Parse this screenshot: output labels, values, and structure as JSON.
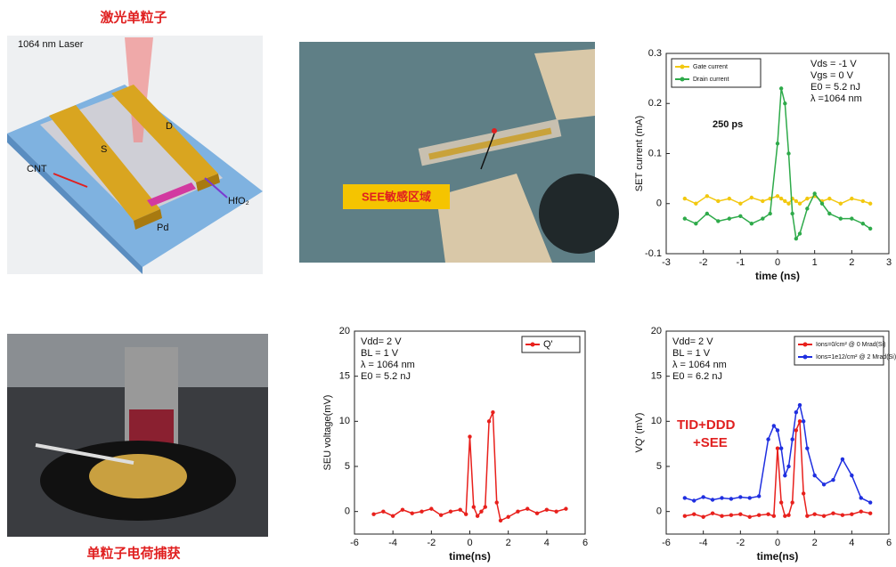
{
  "figure": {
    "top_caption": "激光单粒子",
    "bottom_caption": "单粒子电荷捕获",
    "device": {
      "laser": "1064 nm Laser",
      "source": "S",
      "drain": "D",
      "cnt": "CNT",
      "oxide": "HfO₂",
      "gate": "Pd"
    },
    "photo_label": "SEE敏感区域"
  },
  "chart_data": [
    {
      "type": "line",
      "xlabel": "time (ns)",
      "ylabel": "SET current (mA)",
      "xlim": [
        -3,
        3
      ],
      "xticks": [
        -3,
        -2,
        -1,
        0,
        1,
        2,
        3
      ],
      "ylim": [
        -0.1,
        0.3
      ],
      "yticks": [
        -0.1,
        0,
        0.1,
        0.2,
        0.3
      ],
      "legend": "upper left",
      "annotations": [
        "Vds = -1 V",
        "Vgs = 0 V",
        "E0 = 5.2 nJ",
        "λ =1064 nm"
      ],
      "callouts": [
        "250 ps"
      ],
      "x": [
        -2.5,
        -2.2,
        -1.9,
        -1.6,
        -1.3,
        -1.0,
        -0.7,
        -0.4,
        -0.2,
        0,
        0.1,
        0.2,
        0.3,
        0.4,
        0.5,
        0.6,
        0.8,
        1.0,
        1.2,
        1.4,
        1.7,
        2.0,
        2.3,
        2.5
      ],
      "series": [
        {
          "name": "Gate current",
          "color": "#f2c80f",
          "values": [
            0.01,
            0.0,
            0.015,
            0.005,
            0.01,
            0.0,
            0.012,
            0.005,
            0.01,
            0.015,
            0.01,
            0.005,
            0.0,
            0.01,
            0.005,
            0.0,
            0.01,
            0.015,
            0.005,
            0.01,
            0.0,
            0.01,
            0.005,
            0.0
          ]
        },
        {
          "name": "Drain current",
          "color": "#2eaa4a",
          "values": [
            -0.03,
            -0.04,
            -0.02,
            -0.035,
            -0.03,
            -0.025,
            -0.04,
            -0.03,
            -0.02,
            0.12,
            0.23,
            0.2,
            0.1,
            -0.02,
            -0.07,
            -0.06,
            -0.01,
            0.02,
            0.0,
            -0.02,
            -0.03,
            -0.03,
            -0.04,
            -0.05
          ]
        }
      ]
    },
    {
      "type": "line",
      "xlabel": "time(ns)",
      "ylabel": "SEU voltage(mV)",
      "xlim": [
        -6,
        6
      ],
      "xticks": [
        -6,
        -4,
        -2,
        0,
        2,
        4,
        6
      ],
      "ylim": [
        -2.5,
        20
      ],
      "yticks": [
        0,
        5,
        10,
        15,
        20
      ],
      "legend": "upper right",
      "annotations": [
        "Vdd= 2 V",
        "BL = 1 V",
        "λ = 1064 nm",
        "E0 = 5.2 nJ"
      ],
      "callouts": [],
      "x": [
        -5,
        -4.5,
        -4,
        -3.5,
        -3,
        -2.5,
        -2,
        -1.5,
        -1,
        -0.5,
        -0.2,
        0,
        0.2,
        0.4,
        0.6,
        0.8,
        1.0,
        1.2,
        1.4,
        1.6,
        2,
        2.5,
        3,
        3.5,
        4,
        4.5,
        5
      ],
      "series": [
        {
          "name": "Q'",
          "color": "#e8201c",
          "values": [
            -0.3,
            0,
            -0.5,
            0.2,
            -0.2,
            0,
            0.3,
            -0.4,
            0,
            0.2,
            -0.3,
            8.3,
            0.5,
            -0.5,
            0,
            0.5,
            10,
            11,
            1,
            -1,
            -0.6,
            0,
            0.3,
            -0.2,
            0.2,
            0,
            0.3
          ]
        }
      ]
    },
    {
      "type": "line",
      "xlabel": "time(ns)",
      "ylabel": "VQ' (mV)",
      "xlim": [
        -6,
        6
      ],
      "xticks": [
        -6,
        -4,
        -2,
        0,
        2,
        4,
        6
      ],
      "ylim": [
        -2.5,
        20
      ],
      "yticks": [
        0,
        5,
        10,
        15,
        20
      ],
      "legend": "upper right",
      "annotations": [
        "Vdd= 2 V",
        "BL = 1 V",
        "λ = 1064 nm",
        "E0 = 6.2 nJ"
      ],
      "callouts": [
        "TID+DDD",
        "+SEE"
      ],
      "x": [
        -5,
        -4.5,
        -4,
        -3.5,
        -3,
        -2.5,
        -2,
        -1.5,
        -1,
        -0.5,
        -0.2,
        0,
        0.2,
        0.4,
        0.6,
        0.8,
        1.0,
        1.2,
        1.4,
        1.6,
        2,
        2.5,
        3,
        3.5,
        4,
        4.5,
        5
      ],
      "series": [
        {
          "name": "Ions=0/cm² @ 0 Mrad(Si)",
          "color": "#e8201c",
          "values": [
            -0.5,
            -0.3,
            -0.6,
            -0.2,
            -0.5,
            -0.4,
            -0.3,
            -0.6,
            -0.4,
            -0.3,
            -0.5,
            7,
            1,
            -0.5,
            -0.4,
            1,
            9,
            10,
            2,
            -0.5,
            -0.3,
            -0.5,
            -0.2,
            -0.4,
            -0.3,
            0,
            -0.2
          ]
        },
        {
          "name": "Ions=1e12/cm² @ 2 Mrad(Si)",
          "color": "#1f2fe0",
          "values": [
            1.5,
            1.2,
            1.6,
            1.3,
            1.5,
            1.4,
            1.6,
            1.5,
            1.7,
            8,
            9.5,
            9,
            7,
            4,
            5,
            8,
            11,
            11.8,
            10,
            7,
            4,
            3,
            3.5,
            5.8,
            4,
            1.5,
            1
          ]
        }
      ]
    }
  ]
}
